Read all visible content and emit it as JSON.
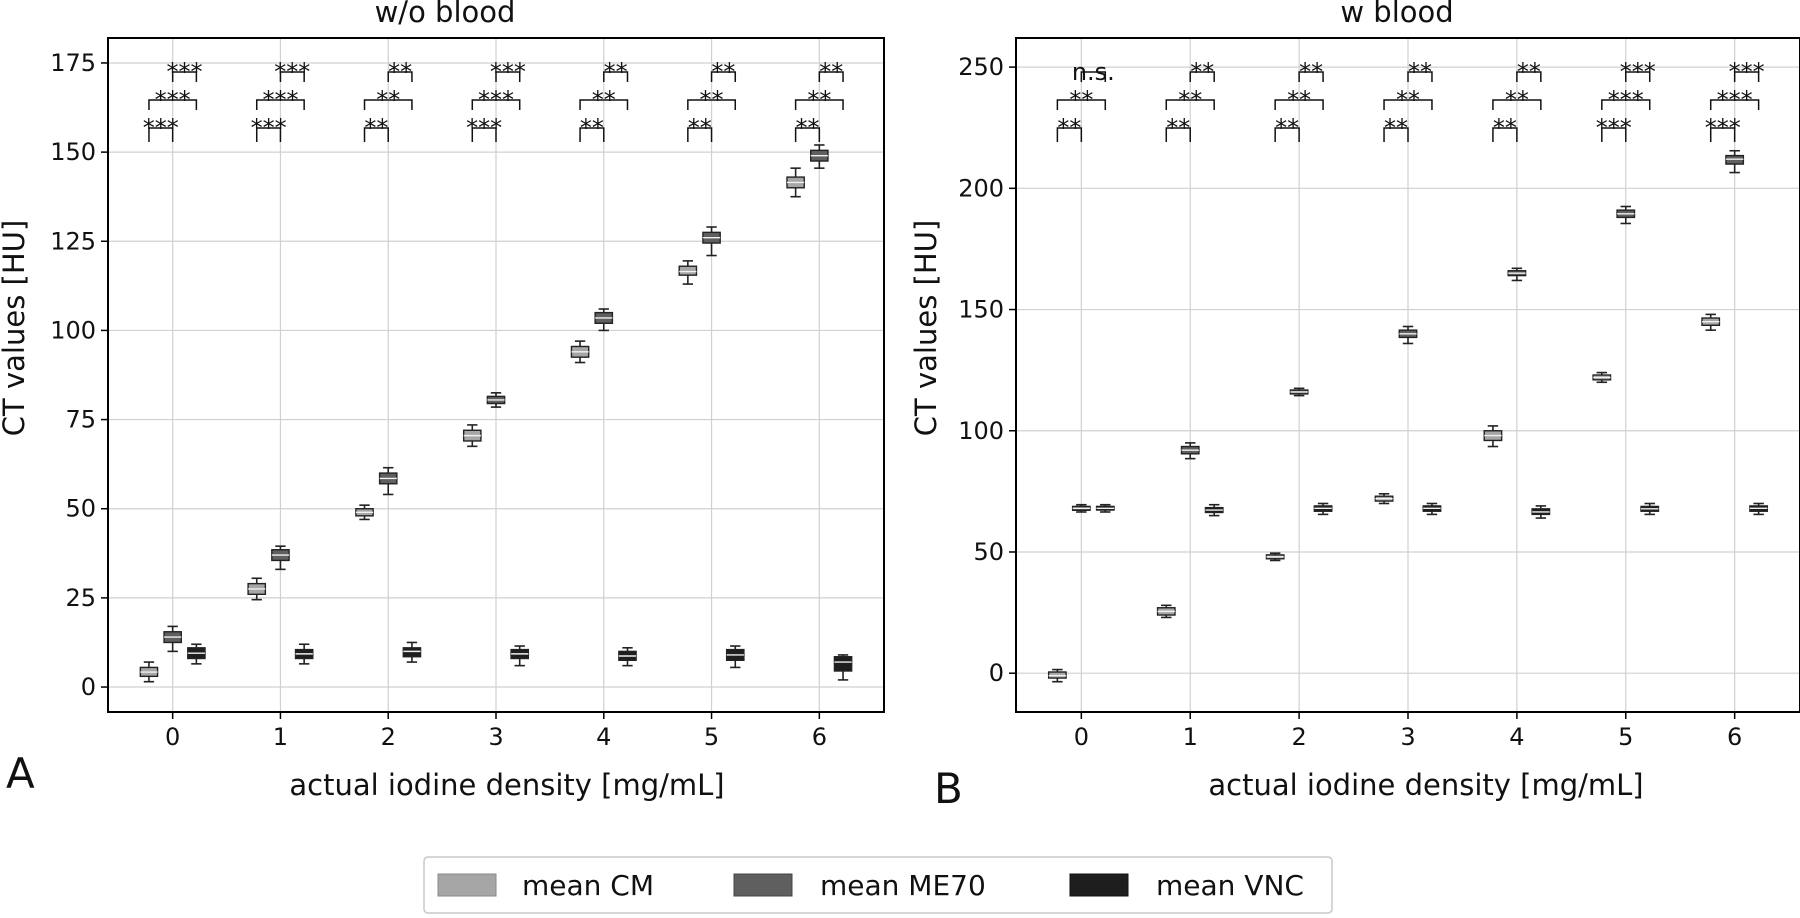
{
  "chart_data": [
    {
      "type": "box",
      "panel_label": "A",
      "title": "w/o blood",
      "xlabel": "actual iodine density [mg/mL]",
      "ylabel": "CT values [HU]",
      "categories": [
        "0",
        "1",
        "2",
        "3",
        "4",
        "5",
        "6"
      ],
      "xlim": [
        -0.6,
        6.6
      ],
      "ylim": [
        -7,
        182
      ],
      "yticks": [
        0,
        25,
        50,
        75,
        100,
        125,
        150,
        175
      ],
      "grid": true,
      "series": [
        {
          "name": "mean CM",
          "boxes": [
            {
              "x": 0,
              "min": 1.5,
              "q1": 3,
              "median": 4.2,
              "q3": 5.5,
              "max": 7
            },
            {
              "x": 1,
              "min": 24.5,
              "q1": 26,
              "median": 27.5,
              "q3": 29,
              "max": 30.5
            },
            {
              "x": 2,
              "min": 47,
              "q1": 48,
              "median": 49,
              "q3": 50,
              "max": 51
            },
            {
              "x": 3,
              "min": 67.5,
              "q1": 69,
              "median": 70.5,
              "q3": 72,
              "max": 73.5
            },
            {
              "x": 4,
              "min": 91,
              "q1": 92.5,
              "median": 94,
              "q3": 95.5,
              "max": 97
            },
            {
              "x": 5,
              "min": 113,
              "q1": 115.5,
              "median": 116.5,
              "q3": 118,
              "max": 119.5
            },
            {
              "x": 6,
              "min": 137.5,
              "q1": 140,
              "median": 141.5,
              "q3": 143,
              "max": 145.5
            }
          ]
        },
        {
          "name": "mean ME70",
          "boxes": [
            {
              "x": 0,
              "min": 10,
              "q1": 12.5,
              "median": 14,
              "q3": 15.5,
              "max": 17
            },
            {
              "x": 1,
              "min": 33,
              "q1": 35.5,
              "median": 37,
              "q3": 38.5,
              "max": 39.5
            },
            {
              "x": 2,
              "min": 54,
              "q1": 57,
              "median": 58.5,
              "q3": 60,
              "max": 61.5
            },
            {
              "x": 3,
              "min": 78.5,
              "q1": 79.5,
              "median": 80.5,
              "q3": 81.5,
              "max": 82.5
            },
            {
              "x": 4,
              "min": 100,
              "q1": 102,
              "median": 103.5,
              "q3": 105,
              "max": 106
            },
            {
              "x": 5,
              "min": 121,
              "q1": 124.5,
              "median": 126,
              "q3": 127.5,
              "max": 129
            },
            {
              "x": 6,
              "min": 145.5,
              "q1": 147.5,
              "median": 149,
              "q3": 150.5,
              "max": 152
            }
          ]
        },
        {
          "name": "mean VNC",
          "boxes": [
            {
              "x": 0,
              "min": 6.5,
              "q1": 8,
              "median": 9.5,
              "q3": 11,
              "max": 12
            },
            {
              "x": 1,
              "min": 6.5,
              "q1": 8,
              "median": 9.3,
              "q3": 10.5,
              "max": 12
            },
            {
              "x": 2,
              "min": 7,
              "q1": 8.5,
              "median": 10,
              "q3": 11,
              "max": 12.5
            },
            {
              "x": 3,
              "min": 6,
              "q1": 8,
              "median": 9.3,
              "q3": 10.5,
              "max": 11.5
            },
            {
              "x": 4,
              "min": 6,
              "q1": 7.5,
              "median": 8.7,
              "q3": 10,
              "max": 11
            },
            {
              "x": 5,
              "min": 5.5,
              "q1": 7.5,
              "median": 9,
              "q3": 10.5,
              "max": 11.5
            },
            {
              "x": 6,
              "min": 2,
              "q1": 4.5,
              "median": 7,
              "q3": 8.5,
              "max": 9
            }
          ]
        }
      ],
      "significance": [
        {
          "x": 0,
          "rows": [
            "***",
            "***",
            "***"
          ]
        },
        {
          "x": 1,
          "rows": [
            "***",
            "***",
            "***"
          ]
        },
        {
          "x": 2,
          "rows": [
            "**",
            "**",
            "**"
          ]
        },
        {
          "x": 3,
          "rows": [
            "***",
            "***",
            "***"
          ]
        },
        {
          "x": 4,
          "rows": [
            "**",
            "**",
            "**"
          ]
        },
        {
          "x": 5,
          "rows": [
            "**",
            "**",
            "**"
          ]
        },
        {
          "x": 6,
          "rows": [
            "**",
            "**",
            "**"
          ]
        }
      ]
    },
    {
      "type": "box",
      "panel_label": "B",
      "title": "w blood",
      "xlabel": "actual iodine density [mg/mL]",
      "ylabel": "CT values [HU]",
      "categories": [
        "0",
        "1",
        "2",
        "3",
        "4",
        "5",
        "6"
      ],
      "xlim": [
        -0.6,
        6.6
      ],
      "ylim": [
        -16,
        262
      ],
      "yticks": [
        0,
        50,
        100,
        150,
        200,
        250
      ],
      "grid": true,
      "series": [
        {
          "name": "mean CM",
          "boxes": [
            {
              "x": 0,
              "min": -3.5,
              "q1": -2,
              "median": -1,
              "q3": 0.5,
              "max": 1.5
            },
            {
              "x": 1,
              "min": 23,
              "q1": 24,
              "median": 25.5,
              "q3": 27,
              "max": 28
            },
            {
              "x": 2,
              "min": 46.5,
              "q1": 47.2,
              "median": 48,
              "q3": 48.8,
              "max": 49.5
            },
            {
              "x": 3,
              "min": 70,
              "q1": 71,
              "median": 72,
              "q3": 73,
              "max": 74
            },
            {
              "x": 4,
              "min": 93.5,
              "q1": 96,
              "median": 98,
              "q3": 100,
              "max": 102
            },
            {
              "x": 5,
              "min": 120,
              "q1": 121,
              "median": 122,
              "q3": 123,
              "max": 124
            },
            {
              "x": 6,
              "min": 141.5,
              "q1": 143.5,
              "median": 145,
              "q3": 146.5,
              "max": 148
            }
          ]
        },
        {
          "name": "mean ME70",
          "boxes": [
            {
              "x": 0,
              "min": 66.5,
              "q1": 67.2,
              "median": 68,
              "q3": 68.8,
              "max": 69.5
            },
            {
              "x": 1,
              "min": 88.5,
              "q1": 90.5,
              "median": 92,
              "q3": 93.5,
              "max": 95
            },
            {
              "x": 2,
              "min": 114.5,
              "q1": 115.2,
              "median": 116,
              "q3": 116.8,
              "max": 117.5
            },
            {
              "x": 3,
              "min": 136,
              "q1": 138.5,
              "median": 140,
              "q3": 141.5,
              "max": 143
            },
            {
              "x": 4,
              "min": 162,
              "q1": 164,
              "median": 165,
              "q3": 166,
              "max": 167
            },
            {
              "x": 5,
              "min": 185.5,
              "q1": 188,
              "median": 189.5,
              "q3": 191,
              "max": 192.5
            },
            {
              "x": 6,
              "min": 206.5,
              "q1": 210,
              "median": 212,
              "q3": 213.5,
              "max": 215.5
            }
          ]
        },
        {
          "name": "mean VNC",
          "boxes": [
            {
              "x": 0,
              "min": 66.5,
              "q1": 67.3,
              "median": 68,
              "q3": 68.8,
              "max": 69.5
            },
            {
              "x": 1,
              "min": 65,
              "q1": 66.3,
              "median": 67.3,
              "q3": 68.3,
              "max": 69.5
            },
            {
              "x": 2,
              "min": 65.5,
              "q1": 66.8,
              "median": 68,
              "q3": 69,
              "max": 70
            },
            {
              "x": 3,
              "min": 65.5,
              "q1": 66.8,
              "median": 68,
              "q3": 69,
              "max": 70
            },
            {
              "x": 4,
              "min": 64,
              "q1": 65.5,
              "median": 66.5,
              "q3": 67.8,
              "max": 69
            },
            {
              "x": 5,
              "min": 65.5,
              "q1": 66.8,
              "median": 67.8,
              "q3": 68.8,
              "max": 70
            },
            {
              "x": 6,
              "min": 65.5,
              "q1": 66.8,
              "median": 68,
              "q3": 69,
              "max": 70
            }
          ]
        }
      ],
      "significance": [
        {
          "x": 0,
          "rows": [
            "**",
            "**",
            "n.s."
          ]
        },
        {
          "x": 1,
          "rows": [
            "**",
            "**",
            "**"
          ]
        },
        {
          "x": 2,
          "rows": [
            "**",
            "**",
            "**"
          ]
        },
        {
          "x": 3,
          "rows": [
            "**",
            "**",
            "**"
          ]
        },
        {
          "x": 4,
          "rows": [
            "**",
            "**",
            "**"
          ]
        },
        {
          "x": 5,
          "rows": [
            "***",
            "***",
            "***"
          ]
        },
        {
          "x": 6,
          "rows": [
            "***",
            "***",
            "***"
          ]
        }
      ]
    }
  ],
  "legend": {
    "placement": "bottom-center",
    "items": [
      {
        "label": "mean CM",
        "color": "#a6a6a6"
      },
      {
        "label": "mean ME70",
        "color": "#5f5f5f"
      },
      {
        "label": "mean VNC",
        "color": "#1e1e1e"
      }
    ]
  },
  "colors": {
    "mean CM": "#a6a6a6",
    "mean ME70": "#5f5f5f",
    "mean VNC": "#1e1e1e",
    "grid": "#d0d0d0",
    "axis": "#000000"
  }
}
